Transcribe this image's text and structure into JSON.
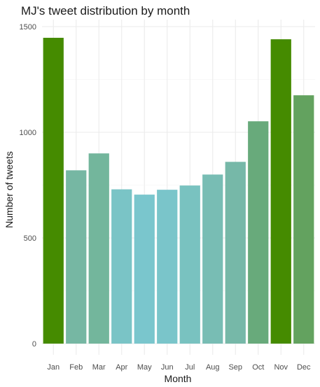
{
  "chart_data": {
    "type": "bar",
    "title": "MJ's tweet distribution by month",
    "xlabel": "Month",
    "ylabel": "Number of tweets",
    "categories": [
      "Jan",
      "Feb",
      "Mar",
      "Apr",
      "May",
      "Jun",
      "Jul",
      "Aug",
      "Sep",
      "Oct",
      "Nov",
      "Dec"
    ],
    "values": [
      1447,
      820,
      900,
      730,
      705,
      728,
      748,
      800,
      860,
      1052,
      1440,
      1175
    ],
    "colors": [
      "#458b00",
      "#76b7a3",
      "#73b69c",
      "#7ac4c6",
      "#7ac6cd",
      "#7ac5ca",
      "#79c2c0",
      "#78bdb4",
      "#76b8a8",
      "#68aa7b",
      "#458b00",
      "#63a25f"
    ],
    "ylim": [
      0,
      1580
    ],
    "yticks": [
      0,
      500,
      1000,
      1500
    ],
    "grid": true,
    "legend": "none"
  }
}
